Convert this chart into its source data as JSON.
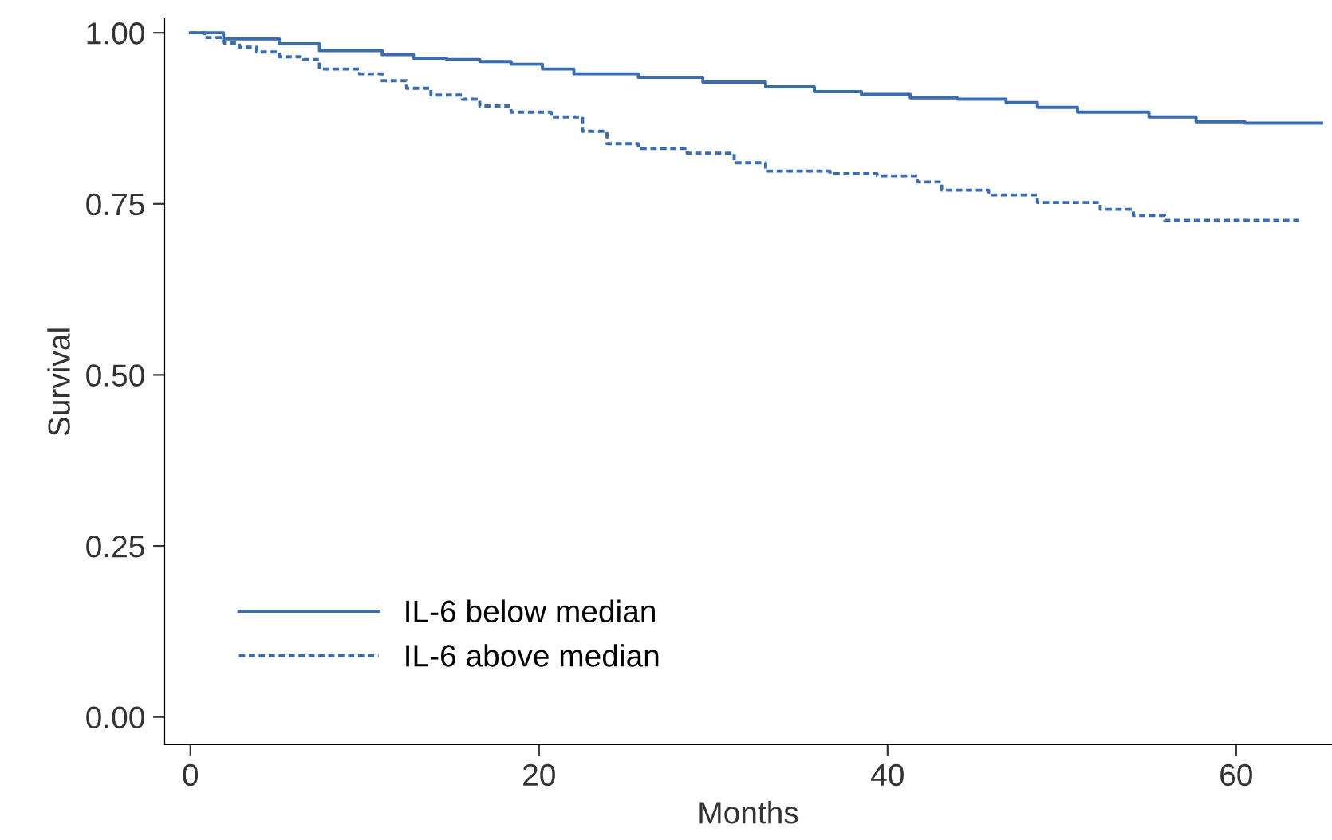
{
  "chart_data": {
    "type": "step",
    "xlabel": "Months",
    "ylabel": "Survival",
    "xlim": [
      -1.5,
      65.5
    ],
    "ylim": [
      -0.04,
      1.02
    ],
    "xticks": [
      0,
      20,
      40,
      60
    ],
    "yticks": [
      {
        "value": 0,
        "label": "0.00"
      },
      {
        "value": 0.25,
        "label": "0.25"
      },
      {
        "value": 0.5,
        "label": "0.50"
      },
      {
        "value": 0.75,
        "label": "0.75"
      },
      {
        "value": 1,
        "label": "1.00"
      }
    ],
    "grid": false,
    "legend": "bottom left",
    "series": [
      {
        "name": "IL-6 below median",
        "color": "#3a6db0",
        "line_style": "solid",
        "x": [
          0,
          1.9,
          5.1,
          7.4,
          11,
          12.8,
          14.7,
          16.6,
          18.4,
          20.2,
          22,
          25.7,
          29.4,
          33,
          35.8,
          38.5,
          41.3,
          44,
          46.8,
          48.6,
          50.9,
          55,
          57.7,
          60.5,
          64.9
        ],
        "values": [
          1.0,
          0.991,
          0.984,
          0.974,
          0.968,
          0.963,
          0.961,
          0.958,
          0.954,
          0.947,
          0.94,
          0.935,
          0.928,
          0.921,
          0.914,
          0.91,
          0.905,
          0.903,
          0.898,
          0.891,
          0.884,
          0.877,
          0.87,
          0.868,
          0.868
        ]
      },
      {
        "name": "IL-6 above median",
        "color": "#3a6db0",
        "line_style": "dotted",
        "x": [
          0,
          0.8,
          1.9,
          2.8,
          3.8,
          5.1,
          6.5,
          7.4,
          9.7,
          11,
          12.4,
          13.8,
          15.6,
          16.6,
          18.4,
          20.7,
          22.5,
          23.9,
          25.7,
          28.5,
          31.2,
          33,
          36.7,
          39.4,
          41.7,
          43.1,
          45.8,
          48.6,
          52.2,
          54.1,
          55.9,
          63.7
        ],
        "values": [
          1.0,
          0.993,
          0.985,
          0.979,
          0.972,
          0.965,
          0.961,
          0.947,
          0.94,
          0.93,
          0.919,
          0.909,
          0.903,
          0.893,
          0.884,
          0.877,
          0.856,
          0.838,
          0.831,
          0.824,
          0.81,
          0.798,
          0.794,
          0.791,
          0.782,
          0.77,
          0.763,
          0.752,
          0.742,
          0.733,
          0.726,
          0.726
        ]
      }
    ]
  }
}
